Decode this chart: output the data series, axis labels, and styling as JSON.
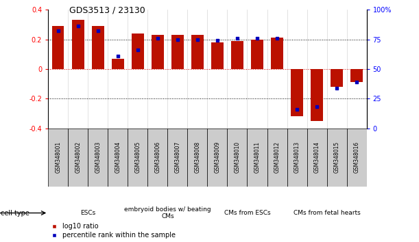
{
  "title": "GDS3513 / 23130",
  "samples": [
    "GSM348001",
    "GSM348002",
    "GSM348003",
    "GSM348004",
    "GSM348005",
    "GSM348006",
    "GSM348007",
    "GSM348008",
    "GSM348009",
    "GSM348010",
    "GSM348011",
    "GSM348012",
    "GSM348013",
    "GSM348014",
    "GSM348015",
    "GSM348016"
  ],
  "log10_ratio": [
    0.29,
    0.33,
    0.29,
    0.07,
    0.24,
    0.23,
    0.23,
    0.23,
    0.18,
    0.19,
    0.2,
    0.21,
    -0.32,
    -0.35,
    -0.12,
    -0.09
  ],
  "percentile_rank": [
    82,
    86,
    82,
    61,
    66,
    76,
    75,
    75,
    74,
    76,
    76,
    76,
    16,
    18,
    34,
    39
  ],
  "cell_types": [
    {
      "label": "ESCs",
      "start": 0,
      "end": 4,
      "color": "#bbffbb"
    },
    {
      "label": "embryoid bodies w/ beating\nCMs",
      "start": 4,
      "end": 8,
      "color": "#ddffdd"
    },
    {
      "label": "CMs from ESCs",
      "start": 8,
      "end": 12,
      "color": "#bbffbb"
    },
    {
      "label": "CMs from fetal hearts",
      "start": 12,
      "end": 16,
      "color": "#44cc44"
    }
  ],
  "ylim": [
    -0.4,
    0.4
  ],
  "y2lim": [
    0,
    100
  ],
  "bar_color": "#bb1100",
  "dot_color": "#0000bb",
  "bg_color": "#ffffff",
  "plot_bg": "#ffffff",
  "zero_line_color": "#cc0000",
  "label_box_color": "#cccccc",
  "legend_labels": [
    "log10 ratio",
    "percentile rank within the sample"
  ]
}
